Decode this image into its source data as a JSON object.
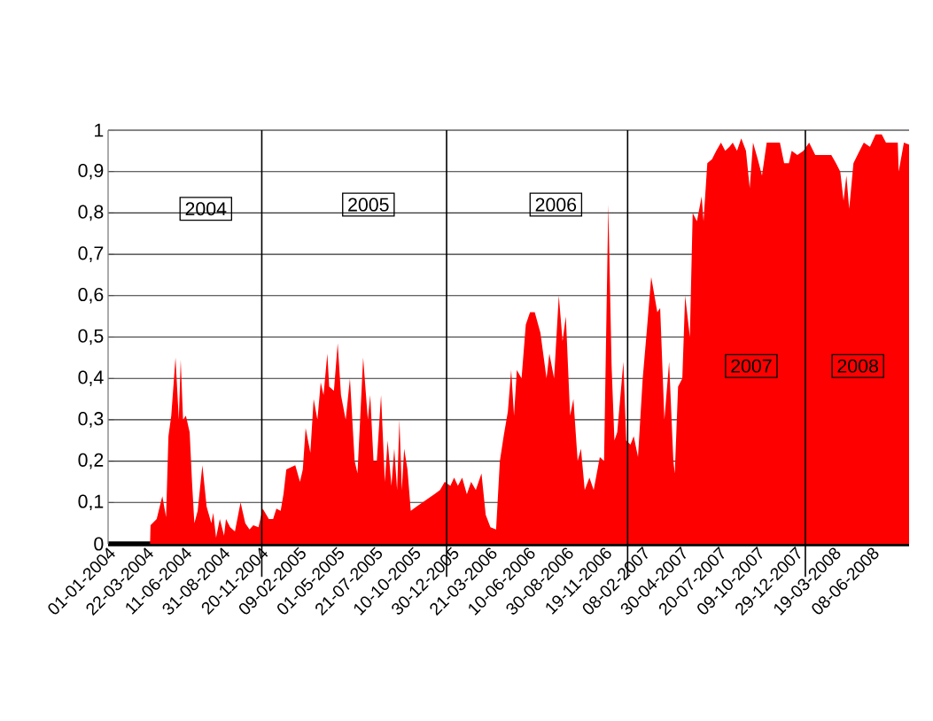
{
  "chart_data": {
    "type": "area",
    "x": [
      "2004-01-01",
      "2004-03-30",
      "2004-03-31",
      "2004-04-13",
      "2004-04-25",
      "2004-05-03",
      "2004-05-08",
      "2004-05-14",
      "2004-05-23",
      "2004-05-30",
      "2004-06-03",
      "2004-06-08",
      "2004-06-14",
      "2004-06-22",
      "2004-06-27",
      "2004-07-02",
      "2004-07-09",
      "2004-07-19",
      "2004-07-28",
      "2004-08-07",
      "2004-08-11",
      "2004-08-17",
      "2004-08-25",
      "2004-09-03",
      "2004-09-07",
      "2004-09-16",
      "2004-09-26",
      "2004-10-08",
      "2004-10-18",
      "2004-10-27",
      "2004-11-04",
      "2004-11-15",
      "2004-11-24",
      "2004-12-07",
      "2004-12-16",
      "2004-12-23",
      "2005-01-01",
      "2005-01-07",
      "2005-01-13",
      "2005-02-01",
      "2005-02-11",
      "2005-02-17",
      "2005-02-23",
      "2005-03-05",
      "2005-03-12",
      "2005-03-20",
      "2005-03-27",
      "2005-04-02",
      "2005-04-10",
      "2005-04-14",
      "2005-04-24",
      "2005-05-02",
      "2005-05-09",
      "2005-05-19",
      "2005-05-28",
      "2005-06-07",
      "2005-06-13",
      "2005-06-25",
      "2005-07-05",
      "2005-07-10",
      "2005-07-17",
      "2005-07-24",
      "2005-08-02",
      "2005-08-10",
      "2005-08-16",
      "2005-08-24",
      "2005-08-30",
      "2005-09-05",
      "2005-09-10",
      "2005-09-15",
      "2005-09-20",
      "2005-09-27",
      "2005-10-04",
      "2005-10-16",
      "2005-10-29",
      "2005-11-10",
      "2005-11-23",
      "2005-12-05",
      "2005-12-15",
      "2005-12-27",
      "2006-01-04",
      "2006-01-12",
      "2006-01-21",
      "2006-01-31",
      "2006-02-09",
      "2006-02-19",
      "2006-03-03",
      "2006-03-12",
      "2006-03-22",
      "2006-04-03",
      "2006-04-11",
      "2006-04-19",
      "2006-04-28",
      "2006-05-05",
      "2006-05-11",
      "2006-05-17",
      "2006-05-27",
      "2006-06-05",
      "2006-06-14",
      "2006-06-24",
      "2006-07-06",
      "2006-07-19",
      "2006-07-25",
      "2006-08-04",
      "2006-08-14",
      "2006-08-22",
      "2006-08-29",
      "2006-09-07",
      "2006-09-14",
      "2006-09-23",
      "2006-09-30",
      "2006-10-08",
      "2006-10-18",
      "2006-10-27",
      "2006-11-09",
      "2006-11-18",
      "2006-11-27",
      "2006-12-04",
      "2006-12-10",
      "2006-12-16",
      "2006-12-29",
      "2007-01-04",
      "2007-01-13",
      "2007-01-20",
      "2007-01-29",
      "2007-02-08",
      "2007-02-17",
      "2007-02-26",
      "2007-03-11",
      "2007-03-17",
      "2007-03-26",
      "2007-04-05",
      "2007-04-14",
      "2007-04-17",
      "2007-04-24",
      "2007-05-03",
      "2007-05-09",
      "2007-05-19",
      "2007-05-25",
      "2007-06-03",
      "2007-06-13",
      "2007-06-17",
      "2007-06-25",
      "2007-07-05",
      "2007-07-14",
      "2007-07-24",
      "2007-08-02",
      "2007-08-11",
      "2007-08-18",
      "2007-08-27",
      "2007-09-05",
      "2007-09-15",
      "2007-09-23",
      "2007-09-30",
      "2007-10-10",
      "2007-10-19",
      "2007-10-29",
      "2007-11-10",
      "2007-11-26",
      "2007-12-05",
      "2007-12-15",
      "2007-12-21",
      "2008-01-02",
      "2008-01-15",
      "2008-01-27",
      "2008-02-09",
      "2008-02-28",
      "2008-03-14",
      "2008-03-24",
      "2008-04-02",
      "2008-04-09",
      "2008-04-15",
      "2008-04-21",
      "2008-04-30",
      "2008-05-13",
      "2008-05-22",
      "2008-06-04",
      "2008-06-16",
      "2008-06-29",
      "2008-07-08",
      "2008-07-21",
      "2008-08-02",
      "2008-08-04",
      "2008-08-15",
      "2008-08-26"
    ],
    "values": [
      0,
      0,
      0.045,
      0.06,
      0.115,
      0.065,
      0.26,
      0.31,
      0.45,
      0.3,
      0.445,
      0.3,
      0.31,
      0.27,
      0.15,
      0.05,
      0.08,
      0.19,
      0.09,
      0.05,
      0.075,
      0.015,
      0.06,
      0.02,
      0.06,
      0.04,
      0.03,
      0.1,
      0.05,
      0.035,
      0.045,
      0.04,
      0.085,
      0.06,
      0.06,
      0.085,
      0.08,
      0.12,
      0.18,
      0.19,
      0.15,
      0.18,
      0.28,
      0.22,
      0.35,
      0.3,
      0.39,
      0.36,
      0.46,
      0.38,
      0.37,
      0.485,
      0.36,
      0.3,
      0.4,
      0.2,
      0.17,
      0.45,
      0.3,
      0.36,
      0.2,
      0.2,
      0.36,
      0.15,
      0.25,
      0.14,
      0.23,
      0.13,
      0.3,
      0.13,
      0.23,
      0.18,
      0.08,
      0.09,
      0.1,
      0.11,
      0.12,
      0.13,
      0.15,
      0.14,
      0.16,
      0.14,
      0.16,
      0.12,
      0.15,
      0.13,
      0.17,
      0.07,
      0.04,
      0.035,
      0.2,
      0.26,
      0.32,
      0.42,
      0.31,
      0.42,
      0.4,
      0.53,
      0.56,
      0.56,
      0.51,
      0.4,
      0.46,
      0.4,
      0.6,
      0.49,
      0.55,
      0.31,
      0.35,
      0.2,
      0.23,
      0.13,
      0.16,
      0.13,
      0.21,
      0.2,
      0.82,
      0.43,
      0.25,
      0.27,
      0.44,
      0.25,
      0.24,
      0.26,
      0.21,
      0.4,
      0.52,
      0.645,
      0.56,
      0.57,
      0.3,
      0.44,
      0.2,
      0.17,
      0.38,
      0.4,
      0.6,
      0.5,
      0.8,
      0.78,
      0.84,
      0.78,
      0.92,
      0.93,
      0.95,
      0.97,
      0.95,
      0.96,
      0.97,
      0.95,
      0.98,
      0.95,
      0.86,
      0.97,
      0.93,
      0.89,
      0.97,
      0.97,
      0.97,
      0.92,
      0.92,
      0.95,
      0.94,
      0.95,
      0.97,
      0.94,
      0.94,
      0.94,
      0.92,
      0.9,
      0.83,
      0.89,
      0.81,
      0.92,
      0.95,
      0.97,
      0.96,
      0.99,
      0.99,
      0.97,
      0.97,
      0.97,
      0.9,
      0.97,
      0.965
    ],
    "color": "#ff0000",
    "marker": "none",
    "grid": "y",
    "xlim": [
      "2004-01-01",
      "2008-08-26"
    ],
    "xticks": [
      {
        "value": "2004-01-01",
        "label": "01-01-2004"
      },
      {
        "value": "2004-03-22",
        "label": "22-03-2004"
      },
      {
        "value": "2004-06-11",
        "label": "11-06-2004"
      },
      {
        "value": "2004-08-31",
        "label": "31-08-2004"
      },
      {
        "value": "2004-11-20",
        "label": "20-11-2004"
      },
      {
        "value": "2005-02-09",
        "label": "09-02-2005"
      },
      {
        "value": "2005-05-01",
        "label": "01-05-2005"
      },
      {
        "value": "2005-07-21",
        "label": "21-07-2005"
      },
      {
        "value": "2005-10-10",
        "label": "10-10-2005"
      },
      {
        "value": "2005-12-30",
        "label": "30-12-2005"
      },
      {
        "value": "2006-03-21",
        "label": "21-03-2006"
      },
      {
        "value": "2006-06-10",
        "label": "10-06-2006"
      },
      {
        "value": "2006-08-30",
        "label": "30-08-2006"
      },
      {
        "value": "2006-11-19",
        "label": "19-11-2006"
      },
      {
        "value": "2007-02-08",
        "label": "08-02-2007"
      },
      {
        "value": "2007-04-30",
        "label": "30-04-2007"
      },
      {
        "value": "2007-07-20",
        "label": "20-07-2007"
      },
      {
        "value": "2007-10-09",
        "label": "09-10-2007"
      },
      {
        "value": "2007-12-29",
        "label": "29-12-2007"
      },
      {
        "value": "2008-03-19",
        "label": "19-03-2008"
      },
      {
        "value": "2008-06-08",
        "label": "08-06-2008"
      }
    ],
    "ylim": [
      0,
      1
    ],
    "yticks": [
      0,
      {
        "value": 0.1,
        "label": "0,1"
      },
      {
        "value": 0.2,
        "label": "0,2"
      },
      {
        "value": 0.3,
        "label": "0,3"
      },
      {
        "value": 0.4,
        "label": "0,4"
      },
      {
        "value": 0.5,
        "label": "0,5"
      },
      {
        "value": 0.6,
        "label": "0,6"
      },
      {
        "value": 0.7,
        "label": "0,7"
      },
      {
        "value": 0.8,
        "label": "0,8"
      },
      {
        "value": 0.9,
        "label": "0,9"
      },
      1
    ],
    "ref_lines": [
      {
        "axis": "x",
        "value": "2004-11-22"
      },
      {
        "axis": "x",
        "value": "2005-12-19"
      },
      {
        "axis": "x",
        "value": "2007-01-07"
      },
      {
        "axis": "x",
        "value": "2008-01-19"
      }
    ],
    "annotations": [
      "2004",
      "2005",
      "2006",
      "2007",
      "2008"
    ]
  }
}
